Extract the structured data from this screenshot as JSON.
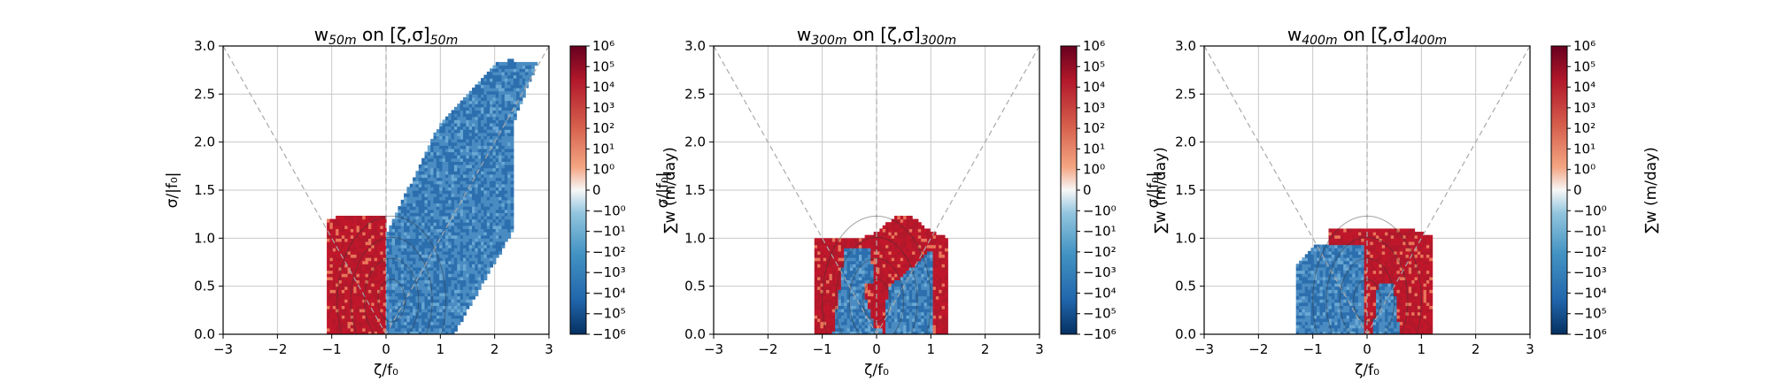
{
  "chart_data": [
    {
      "type": "heatmap",
      "title_main": "w",
      "title_sub": "50m",
      "title_on": " on [ζ,σ]",
      "title_sub2": "50m",
      "xlabel": "ζ/f₀",
      "ylabel": "σ/|f₀|",
      "xlim": [
        -3,
        3
      ],
      "ylim": [
        0,
        3
      ],
      "xticks": [
        "−3",
        "−2",
        "−1",
        "0",
        "1",
        "2",
        "3"
      ],
      "yticks": [
        "0.0",
        "0.5",
        "1.0",
        "1.5",
        "2.0",
        "2.5",
        "3.0"
      ],
      "grid": true,
      "positive_region": {
        "x": [
          -1.1,
          0.05
        ],
        "y": [
          0,
          1.25
        ]
      },
      "negative_region": {
        "x": [
          0,
          2.3
        ],
        "y": [
          0,
          2.85
        ]
      },
      "colorbar": {
        "label": "∑w (m/day)",
        "ticks": [
          "10⁶",
          "10⁵",
          "10⁴",
          "10³",
          "10²",
          "10¹",
          "10⁰",
          "0",
          "−10⁰",
          "−10¹",
          "−10²",
          "−10³",
          "−10⁴",
          "−10⁵",
          "−10⁶"
        ]
      }
    },
    {
      "type": "heatmap",
      "title_main": "w",
      "title_sub": "300m",
      "title_on": " on [ζ,σ]",
      "title_sub2": "300m",
      "xlabel": "ζ/f₀",
      "ylabel": "σ/|f₀|",
      "xlim": [
        -3,
        3
      ],
      "ylim": [
        0,
        3
      ],
      "xticks": [
        "−3",
        "−2",
        "−1",
        "0",
        "1",
        "2",
        "3"
      ],
      "yticks": [
        "0.0",
        "0.5",
        "1.0",
        "1.5",
        "2.0",
        "2.5",
        "3.0"
      ],
      "grid": true,
      "positive_region": {
        "x": [
          -1.1,
          1.3
        ],
        "y": [
          0,
          1.35
        ]
      },
      "negative_region": {
        "x": [
          -1.0,
          1.2
        ],
        "y": [
          0,
          0.95
        ]
      },
      "colorbar": {
        "label": "∑w (m/day)",
        "ticks": [
          "10⁶",
          "10⁵",
          "10⁴",
          "10³",
          "10²",
          "10¹",
          "10⁰",
          "0",
          "−10⁰",
          "−10¹",
          "−10²",
          "−10³",
          "−10⁴",
          "−10⁵",
          "−10⁶"
        ]
      }
    },
    {
      "type": "heatmap",
      "title_main": "w",
      "title_sub": "400m",
      "title_on": " on [ζ,σ]",
      "title_sub2": "400m",
      "xlabel": "ζ/f₀",
      "ylabel": "σ/|f₀|",
      "xlim": [
        -3,
        3
      ],
      "ylim": [
        0,
        3
      ],
      "xticks": [
        "−3",
        "−2",
        "−1",
        "0",
        "1",
        "2",
        "3"
      ],
      "yticks": [
        "0.0",
        "0.5",
        "1.0",
        "1.5",
        "2.0",
        "2.5",
        "3.0"
      ],
      "grid": true,
      "positive_region": {
        "x": [
          -0.6,
          1.2
        ],
        "y": [
          0,
          1.1
        ]
      },
      "negative_region": {
        "x": [
          -1.3,
          0.1
        ],
        "y": [
          0,
          0.95
        ]
      },
      "colorbar": {
        "label": "∑w (m/day)",
        "ticks": [
          "10⁶",
          "10⁵",
          "10⁴",
          "10³",
          "10²",
          "10¹",
          "10⁰",
          "0",
          "−10⁰",
          "−10¹",
          "−10²",
          "−10³",
          "−10⁴",
          "−10⁵",
          "−10⁶"
        ]
      }
    }
  ],
  "colors": {
    "positive": "#c0172b",
    "positive_light": "#e8765a",
    "negative": "#2c6fae",
    "negative_light": "#6aa8d4",
    "grid": "#c8c8c8",
    "guide": "#aaaaaa"
  }
}
